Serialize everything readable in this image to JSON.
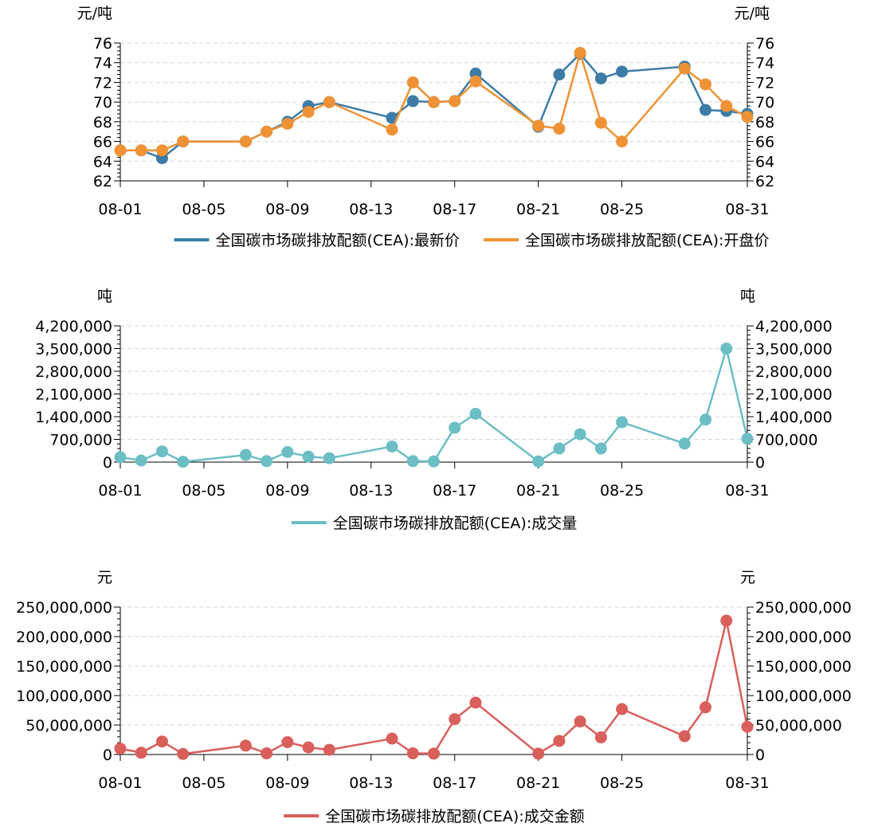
{
  "dates": [
    "08-01",
    "08-02",
    "08-03",
    "08-04",
    "08-07",
    "08-08",
    "08-09",
    "08-10",
    "08-11",
    "08-14",
    "08-15",
    "08-16",
    "08-17",
    "08-18",
    "08-21",
    "08-22",
    "08-23",
    "08-24",
    "08-25",
    "08-28",
    "08-29",
    "08-30",
    "08-31"
  ],
  "chart_data": [
    {
      "type": "line",
      "title": "",
      "unit": "元/吨",
      "ylim": [
        62,
        76
      ],
      "yticks": [
        62,
        64,
        66,
        68,
        70,
        72,
        74,
        76
      ],
      "xticks": [
        "08-01",
        "08-05",
        "08-09",
        "08-13",
        "08-17",
        "08-21",
        "08-25",
        "08-31"
      ],
      "grid": true,
      "legend_position": "bottom",
      "series": [
        {
          "name": "全国碳市场碳排放配额(CEA):最新价",
          "color": "#3d7ca6",
          "values": [
            65.1,
            65.1,
            64.3,
            66.0,
            66.0,
            67.0,
            68.0,
            69.6,
            70.0,
            68.4,
            70.1,
            70.0,
            70.1,
            72.9,
            67.5,
            72.8,
            74.9,
            72.4,
            73.1,
            73.6,
            69.2,
            69.1,
            68.8
          ]
        },
        {
          "name": "全国碳市场碳排放配额(CEA):开盘价",
          "color": "#ef9235",
          "values": [
            65.1,
            65.1,
            65.1,
            66.0,
            66.0,
            67.0,
            67.8,
            69.0,
            70.0,
            67.2,
            72.0,
            70.0,
            70.1,
            72.1,
            67.6,
            67.3,
            75.0,
            67.9,
            66.0,
            73.4,
            71.8,
            69.6,
            68.5
          ]
        }
      ]
    },
    {
      "type": "line",
      "title": "",
      "unit": "吨",
      "ylim": [
        0,
        4200000
      ],
      "yticks": [
        0,
        700000,
        1400000,
        2100000,
        2800000,
        3500000,
        4200000
      ],
      "ytick_labels": [
        "0",
        "700,000",
        "1,400,000",
        "2,100,000",
        "2,800,000",
        "3,500,000",
        "4,200,000"
      ],
      "xticks": [
        "08-01",
        "08-05",
        "08-09",
        "08-13",
        "08-17",
        "08-21",
        "08-25",
        "08-31"
      ],
      "grid": true,
      "legend_position": "bottom",
      "series": [
        {
          "name": "全国碳市场碳排放配额(CEA):成交量",
          "color": "#6cbec5",
          "values": [
            150000,
            50000,
            330000,
            10000,
            220000,
            30000,
            310000,
            170000,
            120000,
            480000,
            30000,
            20000,
            1060000,
            1490000,
            20000,
            420000,
            860000,
            420000,
            1230000,
            570000,
            1310000,
            3500000,
            720000
          ]
        }
      ]
    },
    {
      "type": "line",
      "title": "",
      "unit": "元",
      "ylim": [
        0,
        250000000
      ],
      "yticks": [
        0,
        50000000,
        100000000,
        150000000,
        200000000,
        250000000
      ],
      "ytick_labels": [
        "0",
        "50,000,000",
        "100,000,000",
        "150,000,000",
        "200,000,000",
        "250,000,000"
      ],
      "xticks": [
        "08-01",
        "08-05",
        "08-09",
        "08-13",
        "08-17",
        "08-21",
        "08-25",
        "08-31"
      ],
      "grid": true,
      "legend_position": "bottom",
      "series": [
        {
          "name": "全国碳市场碳排放配额(CEA):成交金额",
          "color": "#d95f5b",
          "values": [
            10000000,
            3000000,
            22000000,
            1000000,
            15000000,
            2000000,
            21000000,
            12000000,
            8000000,
            27000000,
            2000000,
            1500000,
            60000000,
            88000000,
            1500000,
            23000000,
            56000000,
            29000000,
            77000000,
            31000000,
            80000000,
            227000000,
            47000000
          ]
        }
      ]
    }
  ]
}
